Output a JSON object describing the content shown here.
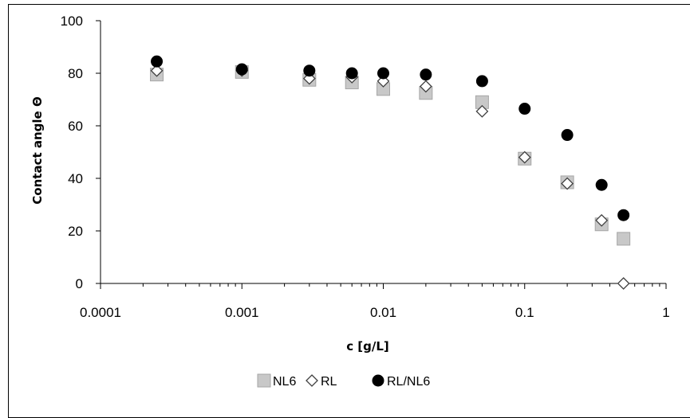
{
  "chart_data": {
    "type": "scatter",
    "xlabel": "c [g/L]",
    "ylabel": "Contact angle Θ",
    "xscale": "log",
    "xlim": [
      0.0001,
      1
    ],
    "ylim": [
      0,
      100
    ],
    "x_ticks": [
      0.0001,
      0.001,
      0.01,
      0.1,
      1
    ],
    "x_tick_labels": [
      "0.0001",
      "0.001",
      "0.01",
      "0.1",
      "1"
    ],
    "y_ticks": [
      0,
      20,
      40,
      60,
      80,
      100
    ],
    "y_tick_labels": [
      "0",
      "20",
      "40",
      "60",
      "80",
      "100"
    ],
    "grid": false,
    "legend_position": "bottom",
    "series": [
      {
        "name": "NL6",
        "marker": "square",
        "color": "#c8c8c8",
        "stroke": "#a6a6a6",
        "points": [
          {
            "x": 0.00025,
            "y": 79.5
          },
          {
            "x": 0.001,
            "y": 80.5
          },
          {
            "x": 0.003,
            "y": 77.5
          },
          {
            "x": 0.006,
            "y": 76.5
          },
          {
            "x": 0.01,
            "y": 74
          },
          {
            "x": 0.02,
            "y": 72.5
          },
          {
            "x": 0.05,
            "y": 69
          },
          {
            "x": 0.1,
            "y": 47.5
          },
          {
            "x": 0.2,
            "y": 38.5
          },
          {
            "x": 0.35,
            "y": 22.5
          },
          {
            "x": 0.5,
            "y": 17
          }
        ]
      },
      {
        "name": "RL",
        "marker": "diamond",
        "color": "#ffffff",
        "stroke": "#404040",
        "points": [
          {
            "x": 0.00025,
            "y": 81
          },
          {
            "x": 0.001,
            "y": 81
          },
          {
            "x": 0.003,
            "y": 78
          },
          {
            "x": 0.006,
            "y": 78.5
          },
          {
            "x": 0.01,
            "y": 77
          },
          {
            "x": 0.02,
            "y": 75
          },
          {
            "x": 0.05,
            "y": 65.5
          },
          {
            "x": 0.1,
            "y": 48
          },
          {
            "x": 0.2,
            "y": 38
          },
          {
            "x": 0.35,
            "y": 24
          },
          {
            "x": 0.5,
            "y": 0
          }
        ]
      },
      {
        "name": "RL/NL6",
        "marker": "circle",
        "color": "#000000",
        "stroke": "#000000",
        "points": [
          {
            "x": 0.00025,
            "y": 84.5
          },
          {
            "x": 0.001,
            "y": 81.5
          },
          {
            "x": 0.003,
            "y": 81
          },
          {
            "x": 0.006,
            "y": 80
          },
          {
            "x": 0.01,
            "y": 80
          },
          {
            "x": 0.02,
            "y": 79.5
          },
          {
            "x": 0.05,
            "y": 77
          },
          {
            "x": 0.1,
            "y": 66.5
          },
          {
            "x": 0.2,
            "y": 56.5
          },
          {
            "x": 0.35,
            "y": 37.5
          },
          {
            "x": 0.5,
            "y": 26
          }
        ]
      }
    ]
  }
}
